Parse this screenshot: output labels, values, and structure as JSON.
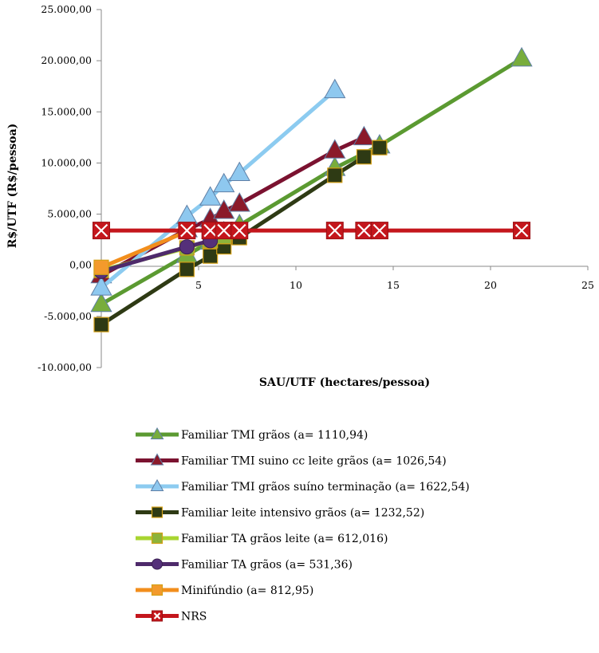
{
  "chart_data": {
    "type": "line",
    "title": "",
    "xlabel": "SAU/UTF (hectares/pessoa)",
    "ylabel": "R$/UTF (R$/pessoa)",
    "xlim": [
      0,
      25
    ],
    "ylim": [
      -10000,
      25000
    ],
    "x_ticks": [
      0,
      5,
      10,
      15,
      20,
      25
    ],
    "x_tick_labels": [
      "0",
      "5",
      "10",
      "15",
      "20",
      "25"
    ],
    "y_ticks": [
      25000,
      20000,
      15000,
      10000,
      5000,
      0,
      -5000,
      -10000
    ],
    "y_tick_labels": [
      "25.000,00",
      "20.000,00",
      "15.000,00",
      "10.000,00",
      "5.000,00",
      "0,00",
      "-5.000,00",
      "-10.000,00"
    ],
    "grid": false,
    "legend_position": "bottom",
    "series": [
      {
        "name": "Familiar TMI grãos (a= 1110,94)",
        "color": "#5b9a31",
        "marker": "triangle",
        "marker_color": "#78ad3c",
        "x": [
          0,
          4.4,
          5.6,
          6.3,
          7.1,
          12,
          14.3,
          21.6
        ],
        "y": [
          -3800,
          1000,
          2300,
          3200,
          3900,
          9500,
          11700,
          20200
        ]
      },
      {
        "name": "Familiar TMI suino cc leite grãos (a= 1026,54)",
        "color": "#7b1230",
        "marker": "triangle",
        "marker_color": "#8b1a2a",
        "x": [
          0,
          4.4,
          5.6,
          6.3,
          7.1,
          12,
          13.5
        ],
        "y": [
          -1000,
          3500,
          4500,
          5300,
          6000,
          11200,
          12500
        ]
      },
      {
        "name": "Familiar TMI grãos suíno terminação (a= 1622,54)",
        "color": "#8ccbf0",
        "marker": "triangle",
        "marker_color": "#8ec8ef",
        "x": [
          0,
          4.4,
          5.6,
          6.3,
          7.1,
          12
        ],
        "y": [
          -2200,
          4800,
          6600,
          7900,
          9000,
          17100
        ]
      },
      {
        "name": "Familiar leite intensivo grãos (a= 1232,52)",
        "color": "#2e3a14",
        "marker": "square",
        "marker_color": "#2e3a14",
        "x": [
          0,
          4.4,
          5.6,
          6.3,
          7.1,
          12,
          13.5,
          14.3
        ],
        "y": [
          -5800,
          -400,
          900,
          1800,
          2700,
          8800,
          10600,
          11500
        ]
      },
      {
        "name": "Familiar TA grãos leite (a= 612,016)",
        "color": "#a8d531",
        "marker": "square",
        "marker_color": "#8db33a",
        "x": [
          0,
          4.4,
          5.6,
          6.3
        ],
        "y": [
          -500,
          1700,
          2400,
          2800
        ]
      },
      {
        "name": "Familiar TA grãos (a= 531,36)",
        "color": "#4e2a6b",
        "marker": "circle",
        "marker_color": "#55307a",
        "x": [
          0,
          4.4,
          5.6
        ],
        "y": [
          -600,
          1800,
          2400
        ]
      },
      {
        "name": "Minifúndio (a= 812,95)",
        "color": "#f28e1c",
        "marker": "square",
        "marker_color": "#f39a2c",
        "x": [
          0,
          4.4
        ],
        "y": [
          -200,
          3300
        ]
      },
      {
        "name": "NRS",
        "color": "#c4161c",
        "marker": "x-box",
        "marker_color": "#c4161c",
        "x": [
          0,
          4.4,
          5.6,
          6.3,
          7.1,
          12,
          13.5,
          14.3,
          21.6
        ],
        "y": [
          3400,
          3400,
          3400,
          3400,
          3400,
          3400,
          3400,
          3400,
          3400
        ]
      }
    ]
  }
}
